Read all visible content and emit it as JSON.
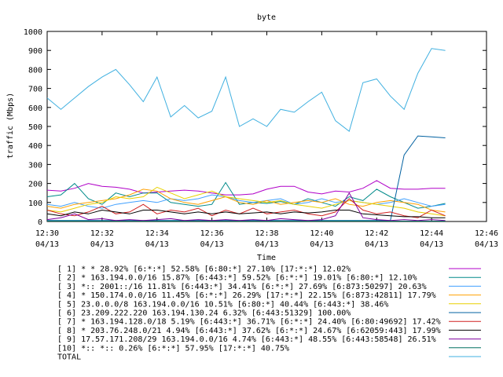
{
  "chart_data": {
    "type": "line",
    "title": "byte",
    "xlabel": "Time",
    "ylabel": "traffic (Mbps)",
    "ylim": [
      0,
      1000
    ],
    "y_ticks": [
      "0",
      "100",
      "200",
      "300",
      "400",
      "500",
      "600",
      "700",
      "800",
      "900",
      "1000"
    ],
    "x_ticks": [
      {
        "time": "12:30",
        "date": "04/13"
      },
      {
        "time": "12:32",
        "date": "04/13"
      },
      {
        "time": "12:34",
        "date": "04/13"
      },
      {
        "time": "12:36",
        "date": "04/13"
      },
      {
        "time": "12:38",
        "date": "04/13"
      },
      {
        "time": "12:40",
        "date": "04/13"
      },
      {
        "time": "12:42",
        "date": "04/13"
      },
      {
        "time": "12:44",
        "date": "04/13"
      },
      {
        "time": "12:46",
        "date": "04/13"
      }
    ],
    "xlim_minutes": [
      0,
      16
    ],
    "grid": false,
    "legend_position": "bottom",
    "x": [
      0,
      0.5,
      1,
      1.5,
      2,
      2.5,
      3,
      3.5,
      4,
      4.5,
      5,
      5.5,
      6,
      6.5,
      7,
      7.5,
      8,
      8.5,
      9,
      9.5,
      10,
      10.5,
      11,
      11.5,
      12,
      12.5,
      13,
      13.5,
      14,
      14.5
    ],
    "series": [
      {
        "name": "[ 1] * * 28.92%  [6:*:*] 52.58% [6:80:*] 27.10% [17:*:*] 12.02%",
        "color": "#b000c8",
        "values": [
          165,
          160,
          175,
          200,
          185,
          180,
          170,
          150,
          155,
          160,
          165,
          160,
          150,
          140,
          140,
          145,
          170,
          185,
          185,
          155,
          145,
          160,
          155,
          175,
          215,
          175,
          170,
          170,
          175,
          175
        ]
      },
      {
        "name": "[ 2] * 163.194.0.0/16 15.87%  [6:443:*] 59.52% [6:*:*] 19.01% [6:80:*] 12.10%",
        "color": "#008a8a",
        "values": [
          130,
          140,
          200,
          120,
          90,
          150,
          130,
          150,
          150,
          100,
          90,
          80,
          90,
          205,
          90,
          100,
          95,
          105,
          90,
          120,
          100,
          80,
          130,
          110,
          170,
          130,
          100,
          70,
          80,
          95
        ]
      },
      {
        "name": "[ 3] *:: 2001::/16 11.81%  [6:443:*] 34.41% [6:*:*] 27.69% [6:873:50297] 20.63%",
        "color": "#40a0ff",
        "values": [
          90,
          80,
          100,
          80,
          70,
          90,
          100,
          110,
          100,
          120,
          110,
          120,
          140,
          130,
          110,
          100,
          110,
          120,
          90,
          100,
          120,
          100,
          110,
          100,
          90,
          100,
          120,
          100,
          80,
          90
        ]
      },
      {
        "name": "[ 4] * 150.174.0.0/16 11.45%  [6:*:*] 26.29% [17:*:*] 22.15% [6:873:42811] 17.79%",
        "color": "#ffa000",
        "values": [
          80,
          70,
          90,
          100,
          110,
          120,
          140,
          170,
          160,
          120,
          100,
          90,
          110,
          130,
          100,
          90,
          110,
          90,
          100,
          110,
          100,
          120,
          90,
          80,
          100,
          110,
          100,
          90,
          60,
          50
        ]
      },
      {
        "name": "[ 5] 23.0.0.0/8 163.194.0.0/16 10.51%  [6:80:*] 40.44% [6:443:*] 38.46%",
        "color": "#e8d000",
        "values": [
          60,
          50,
          70,
          90,
          100,
          130,
          120,
          130,
          180,
          150,
          120,
          140,
          160,
          130,
          120,
          110,
          100,
          110,
          90,
          80,
          70,
          90,
          110,
          100,
          90,
          80,
          70,
          50,
          40,
          30
        ]
      },
      {
        "name": "[ 6] 23.209.222.220 163.194.130.24 6.32%  [6:443:51329] 100.00%",
        "color": "#0060a0",
        "values": [
          5,
          5,
          5,
          5,
          5,
          5,
          5,
          5,
          5,
          5,
          5,
          5,
          5,
          5,
          5,
          5,
          5,
          5,
          5,
          5,
          5,
          5,
          5,
          5,
          5,
          5,
          350,
          450,
          445,
          440
        ]
      },
      {
        "name": "[ 7] * 163.194.128.0/18 5.19%  [6:443:*] 36.71% [6:*:*] 24.40% [6:80:49692] 17.42%",
        "color": "#d02020",
        "values": [
          60,
          40,
          30,
          50,
          80,
          40,
          50,
          90,
          40,
          60,
          50,
          70,
          30,
          60,
          40,
          70,
          40,
          50,
          60,
          40,
          30,
          50,
          120,
          60,
          40,
          50,
          30,
          20,
          60,
          30
        ]
      },
      {
        "name": "[ 8] * 203.76.248.0/21 4.94%  [6:443:*] 37.62% [6:*:*] 24.67% [6:62059:443] 17.99%",
        "color": "#000000",
        "values": [
          40,
          30,
          50,
          40,
          60,
          50,
          40,
          60,
          60,
          50,
          40,
          50,
          40,
          50,
          40,
          45,
          50,
          40,
          50,
          45,
          50,
          60,
          60,
          40,
          35,
          30,
          25,
          25,
          20,
          20
        ]
      },
      {
        "name": "[ 9] 17.57.171.208/29 163.194.0.0/16 4.74%  [6:443:*] 48.55% [6:443:58548] 26.51%",
        "color": "#8000a0",
        "values": [
          10,
          20,
          40,
          10,
          15,
          5,
          10,
          5,
          10,
          15,
          5,
          10,
          5,
          10,
          5,
          10,
          5,
          15,
          10,
          5,
          10,
          30,
          150,
          20,
          10,
          5,
          10,
          5,
          10,
          5
        ]
      },
      {
        "name": "[10] *:: *:: 0.26%  [6:*:*] 57.95% [17:*:*] 40.75%",
        "color": "#007060",
        "values": [
          2,
          2,
          2,
          2,
          2,
          2,
          2,
          2,
          2,
          2,
          2,
          2,
          2,
          2,
          2,
          2,
          2,
          2,
          2,
          2,
          2,
          2,
          2,
          2,
          2,
          2,
          2,
          2,
          2,
          2
        ]
      },
      {
        "name": "TOTAL",
        "color": "#40b0e0",
        "values": [
          650,
          590,
          650,
          710,
          760,
          800,
          720,
          630,
          760,
          550,
          610,
          545,
          580,
          760,
          500,
          540,
          500,
          590,
          575,
          630,
          680,
          530,
          475,
          730,
          750,
          660,
          590,
          780,
          910,
          900
        ]
      }
    ]
  }
}
